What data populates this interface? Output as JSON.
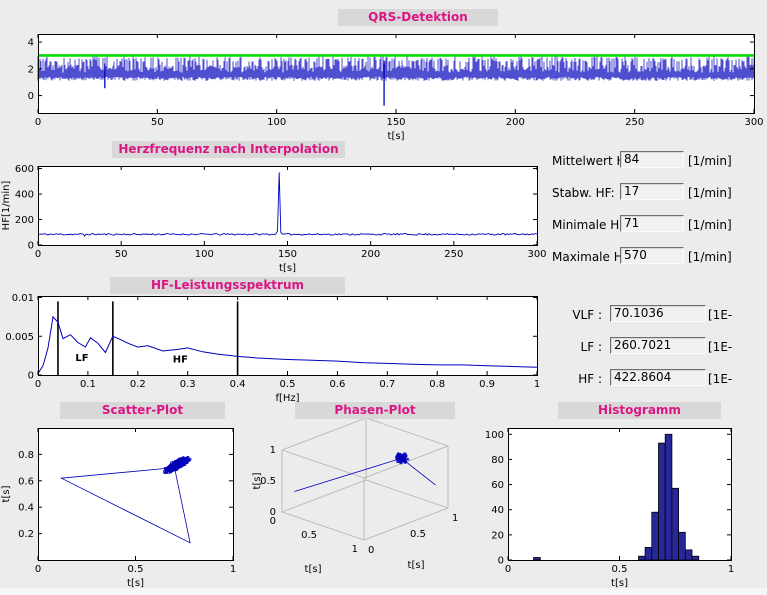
{
  "window": {
    "bg": "#ececec"
  },
  "colors": {
    "title_text": "#dc1584",
    "panel_title_bg": "#d8d8d8",
    "band_label": "#e62222",
    "signal": "#0000bb",
    "threshold": "#00dd00",
    "hist_fill": "#28289a",
    "axis": "#000000"
  },
  "panels": {
    "qrs": {
      "title": "QRS-Detektion"
    },
    "hr": {
      "title": "Herzfrequenz nach Interpolation"
    },
    "spectrum": {
      "title": "HF-Leistungsspektrum"
    },
    "scatter": {
      "title": "Scatter-Plot"
    },
    "phase": {
      "title": "Phasen-Plot"
    },
    "histogram": {
      "title": "Histogramm"
    }
  },
  "stats": {
    "rows": [
      {
        "label": "Mittelwert HF:",
        "value": "84",
        "unit": "[1/min]"
      },
      {
        "label": "Stabw. HF:",
        "value": "17",
        "unit": "[1/min]"
      },
      {
        "label": "Minimale HF:",
        "value": "71",
        "unit": "[1/min]"
      },
      {
        "label": "Maximale HF:",
        "value": "570",
        "unit": "[1/min]"
      }
    ]
  },
  "spectrum_stats": {
    "rows": [
      {
        "label": "VLF :",
        "value": "70.1036",
        "unit": "[1E-"
      },
      {
        "label": "LF :",
        "value": "260.7021",
        "unit": "[1E-"
      },
      {
        "label": "HF :",
        "value": "422.8604",
        "unit": "[1E-"
      }
    ]
  },
  "chart_data": [
    {
      "id": "qrs",
      "type": "line",
      "title": "QRS-Detektion",
      "xlabel": "t[s]",
      "xlim": [
        0,
        300
      ],
      "ylim": [
        -1.3,
        4.6
      ],
      "xticks": [
        0,
        50,
        100,
        150,
        200,
        250,
        300
      ],
      "yticks": [
        0,
        2,
        4
      ],
      "description": "Dense ECG trace with detected QRS complexes and green detection threshold line",
      "baseline_band": [
        1.1,
        2.3
      ],
      "qrs_peak_range": [
        2.5,
        2.95
      ],
      "threshold_line_y": 3.0,
      "artifacts": [
        {
          "t": 28,
          "y_min": 0.55
        },
        {
          "t": 145,
          "y_min": -0.75
        }
      ]
    },
    {
      "id": "hr",
      "type": "line",
      "title": "Herzfrequenz nach Interpolation",
      "xlabel": "t[s]",
      "ylabel": "HF[1/min]",
      "xlim": [
        0,
        300
      ],
      "ylim": [
        0,
        620
      ],
      "xticks": [
        0,
        50,
        100,
        150,
        200,
        250,
        300
      ],
      "yticks": [
        0,
        200,
        400,
        600
      ],
      "baseline_bpm": 84,
      "noise_bpm": 7,
      "dip": {
        "t": 28,
        "bpm": 71
      },
      "spike": {
        "t": 145,
        "bpm": 570
      },
      "summary": {
        "mean": 84,
        "std": 17,
        "min": 71,
        "max": 570
      }
    },
    {
      "id": "spectrum",
      "type": "line",
      "title": "HF-Leistungsspektrum",
      "xlabel": "f[Hz]",
      "xlim": [
        0,
        1
      ],
      "ylim": [
        0,
        0.0102
      ],
      "xticks": [
        0,
        0.1,
        0.2,
        0.3,
        0.4,
        0.5,
        0.6,
        0.7,
        0.8,
        0.9,
        1
      ],
      "yticks": [
        0,
        0.005,
        0.01
      ],
      "points": [
        [
          0,
          0.0002
        ],
        [
          0.01,
          0.0012
        ],
        [
          0.02,
          0.0035
        ],
        [
          0.03,
          0.0075
        ],
        [
          0.04,
          0.0068
        ],
        [
          0.05,
          0.0047
        ],
        [
          0.065,
          0.0052
        ],
        [
          0.08,
          0.0042
        ],
        [
          0.095,
          0.0036
        ],
        [
          0.105,
          0.0048
        ],
        [
          0.12,
          0.0041
        ],
        [
          0.135,
          0.0029
        ],
        [
          0.15,
          0.005
        ],
        [
          0.165,
          0.0046
        ],
        [
          0.18,
          0.0041
        ],
        [
          0.2,
          0.0036
        ],
        [
          0.22,
          0.0038
        ],
        [
          0.25,
          0.0031
        ],
        [
          0.28,
          0.0033
        ],
        [
          0.3,
          0.0035
        ],
        [
          0.33,
          0.003
        ],
        [
          0.36,
          0.0027
        ],
        [
          0.4,
          0.0024
        ],
        [
          0.44,
          0.0022
        ],
        [
          0.5,
          0.002
        ],
        [
          0.55,
          0.0019
        ],
        [
          0.6,
          0.0018
        ],
        [
          0.65,
          0.0016
        ],
        [
          0.7,
          0.0015
        ],
        [
          0.75,
          0.0014
        ],
        [
          0.8,
          0.0013
        ],
        [
          0.85,
          0.0013
        ],
        [
          0.9,
          0.0012
        ],
        [
          0.95,
          0.0011
        ],
        [
          1,
          0.001
        ]
      ],
      "band_lines_hz": [
        0.04,
        0.15,
        0.4
      ],
      "band_labels": [
        {
          "text": "LF",
          "x": 0.075,
          "y": 0.0018
        },
        {
          "text": "HF",
          "x": 0.27,
          "y": 0.0016
        }
      ],
      "band_power": {
        "VLF": 70.1036,
        "LF": 260.7021,
        "HF": 422.8604
      }
    },
    {
      "id": "scatter",
      "type": "scatter",
      "title": "Scatter-Plot",
      "xlabel": "t[s]",
      "ylabel": "t[s]",
      "xlim": [
        0,
        1
      ],
      "ylim": [
        0,
        1
      ],
      "xticks": [
        0,
        0.5,
        1
      ],
      "yticks": [
        0.2,
        0.4,
        0.6,
        0.8
      ],
      "cluster": {
        "center": [
          0.71,
          0.72
        ],
        "n": 260,
        "spread_major": 0.05,
        "spread_minor": 0.015
      },
      "outlier_path": [
        [
          0.7,
          0.7
        ],
        [
          0.12,
          0.62
        ],
        [
          0.78,
          0.13
        ],
        [
          0.7,
          0.7
        ]
      ]
    },
    {
      "id": "phase",
      "type": "line3d",
      "title": "Phasen-Plot",
      "xlabel": "t[s]",
      "ylabel": "t[s]",
      "zlabel": "t[s]",
      "lim": [
        0,
        1
      ],
      "ticks": [
        0,
        0.5,
        1
      ],
      "cluster": {
        "center": [
          0.72,
          0.72,
          0.82
        ],
        "n": 150,
        "spread": 0.04
      },
      "outlier_lines": [
        [
          [
            0.72,
            0.72,
            0.82
          ],
          [
            0.95,
            0.9,
            0.35
          ]
        ],
        [
          [
            0.72,
            0.72,
            0.82
          ],
          [
            0.05,
            0.1,
            0.35
          ]
        ]
      ]
    },
    {
      "id": "histogram",
      "type": "bar",
      "title": "Histogramm",
      "xlabel": "t[s]",
      "xlim": [
        0,
        1
      ],
      "ylim": [
        0,
        105
      ],
      "xticks": [
        0,
        0.5,
        1
      ],
      "yticks": [
        0,
        20,
        40,
        60,
        80,
        100
      ],
      "bin_width": 0.03,
      "bins": [
        {
          "x": 0.13,
          "count": 2
        },
        {
          "x": 0.6,
          "count": 3
        },
        {
          "x": 0.63,
          "count": 10
        },
        {
          "x": 0.66,
          "count": 38
        },
        {
          "x": 0.69,
          "count": 93
        },
        {
          "x": 0.72,
          "count": 100
        },
        {
          "x": 0.75,
          "count": 57
        },
        {
          "x": 0.78,
          "count": 22
        },
        {
          "x": 0.81,
          "count": 8
        },
        {
          "x": 0.84,
          "count": 3
        }
      ]
    }
  ]
}
